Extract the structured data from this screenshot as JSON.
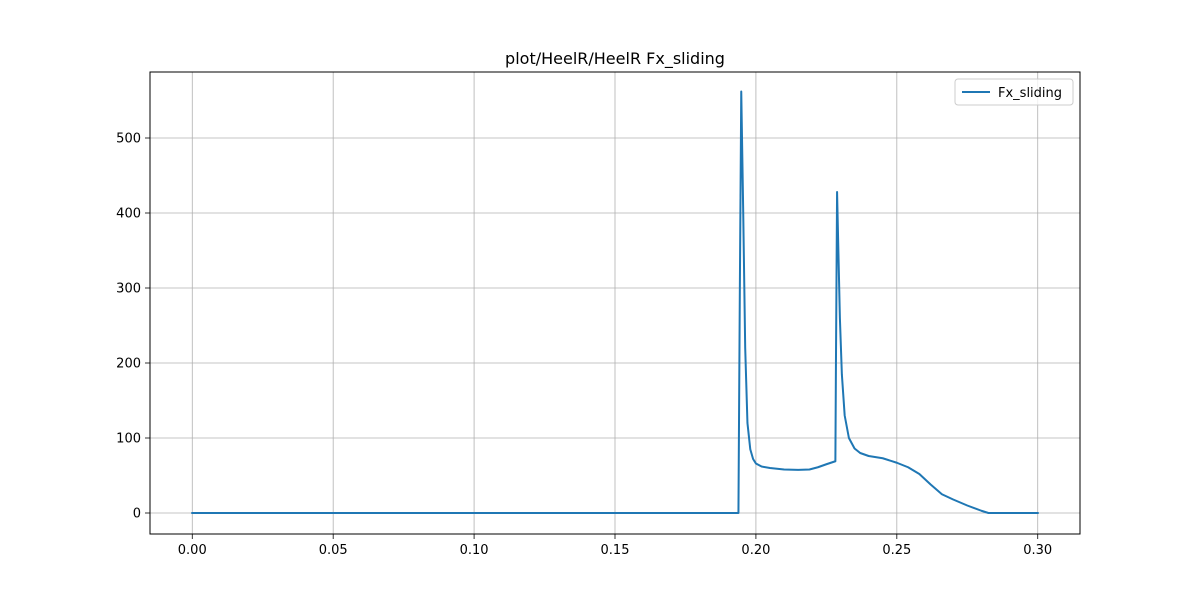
{
  "chart_data": {
    "type": "line",
    "title": "plot/HeelR/HeelR Fx_sliding",
    "xlabel": "",
    "ylabel": "",
    "xlim": [
      -0.015,
      0.315
    ],
    "ylim": [
      -28,
      588
    ],
    "grid": true,
    "legend_position": "top-right",
    "x_ticks": [
      0.0,
      0.05,
      0.1,
      0.15,
      0.2,
      0.25,
      0.3
    ],
    "x_tick_labels": [
      "0.00",
      "0.05",
      "0.10",
      "0.15",
      "0.20",
      "0.25",
      "0.30"
    ],
    "y_ticks": [
      0,
      100,
      200,
      300,
      400,
      500
    ],
    "y_tick_labels": [
      "0",
      "100",
      "200",
      "300",
      "400",
      "500"
    ],
    "series": [
      {
        "name": "Fx_sliding",
        "color": "#1f77b4",
        "x": [
          0.0,
          0.05,
          0.1,
          0.15,
          0.19,
          0.1938,
          0.1943,
          0.1948,
          0.1955,
          0.1962,
          0.197,
          0.198,
          0.199,
          0.2,
          0.202,
          0.205,
          0.21,
          0.215,
          0.219,
          0.222,
          0.225,
          0.2282,
          0.2284,
          0.2288,
          0.2292,
          0.2298,
          0.2305,
          0.2315,
          0.233,
          0.235,
          0.237,
          0.24,
          0.245,
          0.25,
          0.254,
          0.258,
          0.262,
          0.266,
          0.27,
          0.275,
          0.28,
          0.2825,
          0.29,
          0.3
        ],
        "y": [
          0,
          0,
          0,
          0,
          0,
          0,
          300,
          562,
          400,
          220,
          120,
          85,
          72,
          66,
          62,
          60,
          58,
          57.5,
          58,
          61,
          65,
          69,
          200,
          428,
          360,
          260,
          185,
          130,
          100,
          86,
          80,
          76,
          73,
          67,
          61,
          52,
          38,
          25,
          18,
          10,
          3,
          0,
          0,
          0
        ]
      }
    ]
  }
}
